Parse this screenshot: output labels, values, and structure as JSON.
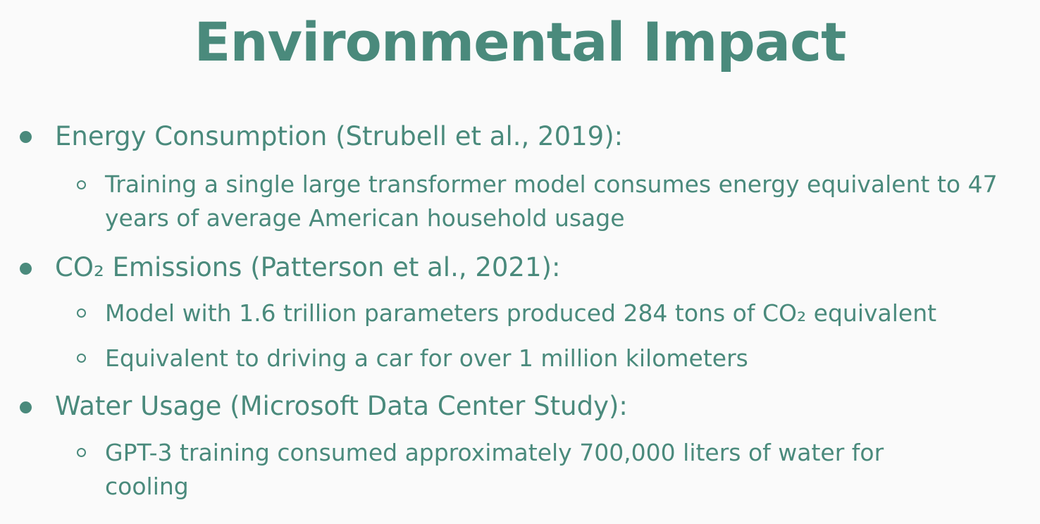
{
  "slide": {
    "title": "Environmental Impact",
    "sections": [
      {
        "heading": "Energy Consumption (Strubell et al., 2019):",
        "points": [
          "Training a single large transformer model consumes energy equivalent to 47 years of average American household usage"
        ]
      },
      {
        "heading": "CO₂ Emissions (Patterson et al., 2021):",
        "points": [
          "Model with 1.6 trillion parameters produced 284 tons of CO₂ equivalent",
          "Equivalent to driving a car for over 1 million kilometers"
        ]
      },
      {
        "heading": "Water Usage (Microsoft Data Center Study):",
        "points": [
          "GPT-3 training consumed approximately 700,000 liters of water for cooling"
        ]
      }
    ]
  },
  "colors": {
    "accent": "#4a8a7c",
    "background": "#fafafa"
  }
}
